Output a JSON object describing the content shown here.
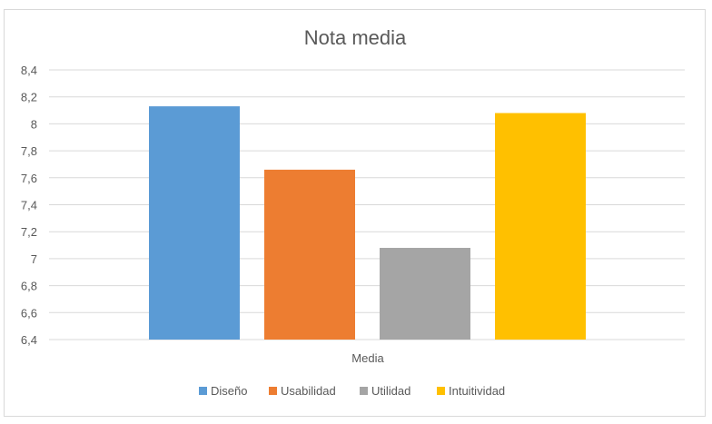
{
  "chart_data": {
    "type": "bar",
    "title": "Nota media",
    "categories": [
      "Media"
    ],
    "series": [
      {
        "name": "Diseño",
        "values": [
          8.13
        ],
        "color": "#5b9bd5"
      },
      {
        "name": "Usabilidad",
        "values": [
          7.66
        ],
        "color": "#ed7d31"
      },
      {
        "name": "Utilidad",
        "values": [
          7.08
        ],
        "color": "#a5a5a5"
      },
      {
        "name": "Intuitividad",
        "values": [
          8.08
        ],
        "color": "#ffc000"
      }
    ],
    "ylim": [
      6.4,
      8.4
    ],
    "yticks": [
      "6,4",
      "6,6",
      "6,8",
      "7",
      "7,2",
      "7,4",
      "7,6",
      "7,8",
      "8",
      "8,2",
      "8,4"
    ],
    "grid": true,
    "legend": "bottom",
    "colors": {
      "grid": "#d9d9d9",
      "text": "#595959"
    }
  }
}
